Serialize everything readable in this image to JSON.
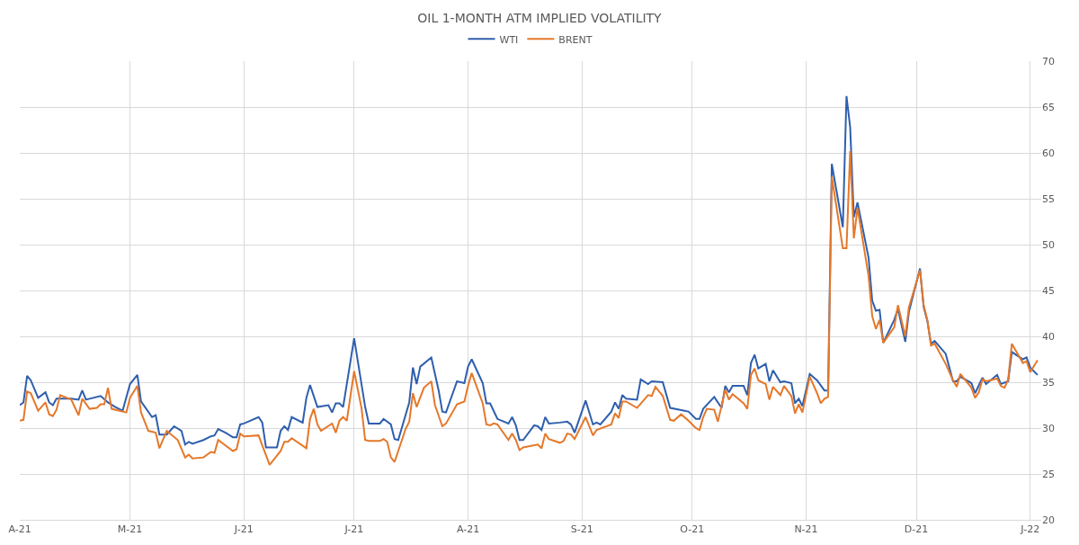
{
  "chart_data": {
    "type": "line",
    "title": "OIL 1-MONTH ATM IMPLIED VOLATILITY",
    "legend": "top",
    "grid": true,
    "line_style": "solid",
    "marker": "none",
    "xlim": [
      "2021-04-01",
      "2022-01-04"
    ],
    "xticks": [
      {
        "value": "2021-04-01",
        "label": "A-21"
      },
      {
        "value": "2021-05-01",
        "label": "M-21"
      },
      {
        "value": "2021-06-01",
        "label": "J-21"
      },
      {
        "value": "2021-07-01",
        "label": "J-21"
      },
      {
        "value": "2021-08-01",
        "label": "A-21"
      },
      {
        "value": "2021-09-01",
        "label": "S-21"
      },
      {
        "value": "2021-10-01",
        "label": "O-21"
      },
      {
        "value": "2021-11-01",
        "label": "N-21"
      },
      {
        "value": "2021-12-01",
        "label": "D-21"
      },
      {
        "value": "2022-01-01",
        "label": "J-22"
      }
    ],
    "ylim": [
      20,
      70
    ],
    "yticks": [
      20,
      25,
      30,
      35,
      40,
      45,
      50,
      55,
      60,
      65,
      70
    ],
    "series": [
      {
        "name": "WTI",
        "color": "#2f5fad",
        "x": [
          "2021-04-01",
          "2021-04-02",
          "2021-04-03",
          "2021-04-04",
          "2021-04-06",
          "2021-04-08",
          "2021-04-09",
          "2021-04-10",
          "2021-04-11",
          "2021-04-15",
          "2021-04-17",
          "2021-04-18",
          "2021-04-19",
          "2021-04-23",
          "2021-04-25",
          "2021-04-27",
          "2021-04-29",
          "2021-05-01",
          "2021-05-03",
          "2021-05-04",
          "2021-05-07",
          "2021-05-08",
          "2021-05-09",
          "2021-05-11",
          "2021-05-13",
          "2021-05-15",
          "2021-05-16",
          "2021-05-17",
          "2021-05-18",
          "2021-05-21",
          "2021-05-23",
          "2021-05-24",
          "2021-05-25",
          "2021-05-27",
          "2021-05-29",
          "2021-05-30",
          "2021-05-31",
          "2021-06-01",
          "2021-06-05",
          "2021-06-06",
          "2021-06-07",
          "2021-06-10",
          "2021-06-11",
          "2021-06-12",
          "2021-06-13",
          "2021-06-14",
          "2021-06-17",
          "2021-06-18",
          "2021-06-19",
          "2021-06-21",
          "2021-06-24",
          "2021-06-25",
          "2021-06-26",
          "2021-06-27",
          "2021-06-28",
          "2021-07-01",
          "2021-07-04",
          "2021-07-05",
          "2021-07-08",
          "2021-07-09",
          "2021-07-11",
          "2021-07-12",
          "2021-07-13",
          "2021-07-16",
          "2021-07-17",
          "2021-07-18",
          "2021-07-19",
          "2021-07-22",
          "2021-07-24",
          "2021-07-25",
          "2021-07-26",
          "2021-07-29",
          "2021-07-31",
          "2021-08-01",
          "2021-08-02",
          "2021-08-05",
          "2021-08-06",
          "2021-08-07",
          "2021-08-09",
          "2021-08-12",
          "2021-08-13",
          "2021-08-14",
          "2021-08-15",
          "2021-08-16",
          "2021-08-19",
          "2021-08-20",
          "2021-08-21",
          "2021-08-22",
          "2021-08-23",
          "2021-08-26",
          "2021-08-28",
          "2021-08-29",
          "2021-08-30",
          "2021-09-02",
          "2021-09-04",
          "2021-09-05",
          "2021-09-06",
          "2021-09-09",
          "2021-09-10",
          "2021-09-11",
          "2021-09-12",
          "2021-09-13",
          "2021-09-16",
          "2021-09-17",
          "2021-09-19",
          "2021-09-20",
          "2021-09-23",
          "2021-09-25",
          "2021-09-30",
          "2021-10-02",
          "2021-10-03",
          "2021-10-04",
          "2021-10-07",
          "2021-10-09",
          "2021-10-10",
          "2021-10-11",
          "2021-10-12",
          "2021-10-15",
          "2021-10-16",
          "2021-10-17",
          "2021-10-18",
          "2021-10-19",
          "2021-10-21",
          "2021-10-22",
          "2021-10-23",
          "2021-10-25",
          "2021-10-26",
          "2021-10-28",
          "2021-10-29",
          "2021-10-30",
          "2021-10-31",
          "2021-11-02",
          "2021-11-04",
          "2021-11-06",
          "2021-11-07",
          "2021-11-08",
          "2021-11-11",
          "2021-11-12",
          "2021-11-13",
          "2021-11-14",
          "2021-11-15",
          "2021-11-18",
          "2021-11-19",
          "2021-11-20",
          "2021-11-21",
          "2021-11-22",
          "2021-11-25",
          "2021-11-26",
          "2021-11-28",
          "2021-11-29",
          "2021-12-02",
          "2021-12-03",
          "2021-12-04",
          "2021-12-05",
          "2021-12-06",
          "2021-12-09",
          "2021-12-11",
          "2021-12-12",
          "2021-12-13",
          "2021-12-16",
          "2021-12-17",
          "2021-12-19",
          "2021-12-20",
          "2021-12-23",
          "2021-12-24",
          "2021-12-26",
          "2021-12-27",
          "2021-12-30",
          "2021-12-31",
          "2022-01-01",
          "2022-01-03"
        ],
        "values": [
          32.5,
          32.8,
          35.7,
          35.2,
          33.3,
          33.9,
          32.8,
          32.5,
          33.2,
          33.2,
          33.1,
          34.1,
          33.1,
          33.5,
          32.8,
          32.3,
          31.9,
          34.8,
          35.8,
          32.9,
          31.2,
          31.4,
          29.3,
          29.3,
          30.2,
          29.7,
          28.2,
          28.5,
          28.3,
          28.7,
          29.1,
          29.2,
          29.9,
          29.5,
          29.0,
          29.0,
          30.4,
          30.5,
          31.2,
          30.6,
          27.9,
          27.9,
          29.7,
          30.2,
          29.8,
          31.2,
          30.6,
          33.3,
          34.7,
          32.3,
          32.5,
          31.7,
          32.7,
          32.7,
          32.3,
          39.8,
          32.3,
          30.5,
          30.5,
          31.0,
          30.4,
          28.8,
          28.7,
          32.8,
          36.6,
          34.8,
          36.7,
          37.7,
          34.1,
          31.8,
          31.7,
          35.1,
          34.9,
          36.7,
          37.5,
          34.9,
          32.7,
          32.7,
          31.0,
          30.5,
          31.2,
          30.3,
          28.7,
          28.7,
          30.3,
          30.2,
          29.8,
          31.2,
          30.5,
          30.6,
          30.7,
          30.4,
          29.5,
          33.0,
          30.4,
          30.6,
          30.4,
          31.8,
          32.8,
          32.1,
          33.6,
          33.2,
          33.1,
          35.3,
          34.8,
          35.1,
          35.0,
          32.2,
          31.8,
          31.0,
          31.0,
          32.1,
          33.4,
          32.2,
          34.6,
          33.9,
          34.6,
          34.6,
          33.6,
          37.1,
          38.0,
          36.5,
          37.0,
          35.1,
          36.3,
          35.0,
          35.1,
          34.9,
          32.7,
          33.2,
          32.4,
          35.9,
          35.2,
          34.1,
          34.1,
          58.8,
          51.9,
          66.2,
          62.8,
          53.0,
          54.6,
          48.6,
          43.9,
          42.8,
          42.9,
          39.3,
          41.8,
          43.0,
          39.4,
          42.7,
          47.4,
          43.2,
          41.7,
          39.2,
          39.5,
          38.1,
          35.1,
          35.1,
          35.6,
          34.9,
          33.8,
          35.5,
          34.8,
          35.8,
          34.8,
          35.1,
          38.3,
          37.5,
          37.7,
          36.6,
          35.8
        ]
      },
      {
        "name": "BRENT",
        "color": "#e5782a",
        "x": [
          "2021-04-01",
          "2021-04-02",
          "2021-04-03",
          "2021-04-04",
          "2021-04-06",
          "2021-04-08",
          "2021-04-09",
          "2021-04-10",
          "2021-04-11",
          "2021-04-12",
          "2021-04-15",
          "2021-04-17",
          "2021-04-18",
          "2021-04-20",
          "2021-04-22",
          "2021-04-23",
          "2021-04-24",
          "2021-04-25",
          "2021-04-26",
          "2021-04-30",
          "2021-05-01",
          "2021-05-03",
          "2021-05-04",
          "2021-05-06",
          "2021-05-08",
          "2021-05-09",
          "2021-05-11",
          "2021-05-14",
          "2021-05-16",
          "2021-05-17",
          "2021-05-18",
          "2021-05-21",
          "2021-05-23",
          "2021-05-24",
          "2021-05-25",
          "2021-05-29",
          "2021-05-30",
          "2021-05-31",
          "2021-06-01",
          "2021-06-05",
          "2021-06-06",
          "2021-06-08",
          "2021-06-11",
          "2021-06-12",
          "2021-06-13",
          "2021-06-14",
          "2021-06-18",
          "2021-06-19",
          "2021-06-20",
          "2021-06-21",
          "2021-06-22",
          "2021-06-25",
          "2021-06-26",
          "2021-06-27",
          "2021-06-28",
          "2021-06-29",
          "2021-07-01",
          "2021-07-03",
          "2021-07-04",
          "2021-07-05",
          "2021-07-08",
          "2021-07-09",
          "2021-07-10",
          "2021-07-11",
          "2021-07-12",
          "2021-07-15",
          "2021-07-16",
          "2021-07-17",
          "2021-07-18",
          "2021-07-20",
          "2021-07-22",
          "2021-07-23",
          "2021-07-25",
          "2021-07-26",
          "2021-07-29",
          "2021-07-31",
          "2021-08-01",
          "2021-08-02",
          "2021-08-05",
          "2021-08-06",
          "2021-08-07",
          "2021-08-08",
          "2021-08-09",
          "2021-08-12",
          "2021-08-13",
          "2021-08-14",
          "2021-08-15",
          "2021-08-16",
          "2021-08-20",
          "2021-08-21",
          "2021-08-22",
          "2021-08-23",
          "2021-08-26",
          "2021-08-27",
          "2021-08-28",
          "2021-08-29",
          "2021-08-30",
          "2021-09-02",
          "2021-09-04",
          "2021-09-05",
          "2021-09-09",
          "2021-09-10",
          "2021-09-11",
          "2021-09-12",
          "2021-09-13",
          "2021-09-16",
          "2021-09-19",
          "2021-09-20",
          "2021-09-21",
          "2021-09-23",
          "2021-09-25",
          "2021-09-26",
          "2021-09-28",
          "2021-09-30",
          "2021-10-02",
          "2021-10-03",
          "2021-10-04",
          "2021-10-05",
          "2021-10-07",
          "2021-10-08",
          "2021-10-10",
          "2021-10-11",
          "2021-10-12",
          "2021-10-15",
          "2021-10-16",
          "2021-10-17",
          "2021-10-18",
          "2021-10-19",
          "2021-10-21",
          "2021-10-22",
          "2021-10-23",
          "2021-10-25",
          "2021-10-26",
          "2021-10-28",
          "2021-10-29",
          "2021-10-30",
          "2021-10-31",
          "2021-11-02",
          "2021-11-04",
          "2021-11-05",
          "2021-11-06",
          "2021-11-07",
          "2021-11-08",
          "2021-11-11",
          "2021-11-12",
          "2021-11-13",
          "2021-11-14",
          "2021-11-15",
          "2021-11-18",
          "2021-11-19",
          "2021-11-20",
          "2021-11-21",
          "2021-11-22",
          "2021-11-25",
          "2021-11-26",
          "2021-11-28",
          "2021-11-29",
          "2021-12-02",
          "2021-12-03",
          "2021-12-04",
          "2021-12-05",
          "2021-12-06",
          "2021-12-09",
          "2021-12-11",
          "2021-12-12",
          "2021-12-13",
          "2021-12-16",
          "2021-12-17",
          "2021-12-18",
          "2021-12-19",
          "2021-12-20",
          "2021-12-23",
          "2021-12-24",
          "2021-12-25",
          "2021-12-26",
          "2021-12-27",
          "2021-12-30",
          "2021-12-31",
          "2022-01-01",
          "2022-01-03"
        ],
        "values": [
          30.8,
          30.9,
          34.0,
          33.8,
          31.9,
          32.8,
          31.5,
          31.3,
          32.0,
          33.6,
          33.1,
          31.4,
          33.2,
          32.1,
          32.2,
          32.6,
          32.6,
          34.4,
          32.1,
          31.7,
          33.3,
          34.6,
          31.7,
          29.7,
          29.5,
          27.8,
          29.7,
          28.7,
          26.8,
          27.1,
          26.7,
          26.8,
          27.4,
          27.3,
          28.7,
          27.5,
          27.7,
          29.4,
          29.1,
          29.2,
          28.1,
          26.0,
          27.5,
          28.5,
          28.5,
          28.9,
          27.8,
          31.0,
          32.1,
          30.4,
          29.7,
          30.5,
          29.5,
          30.8,
          31.2,
          30.8,
          36.2,
          32.2,
          28.7,
          28.6,
          28.6,
          28.8,
          28.5,
          26.8,
          26.3,
          29.9,
          30.7,
          33.8,
          32.3,
          34.4,
          35.1,
          32.5,
          30.2,
          30.5,
          32.6,
          32.9,
          34.6,
          36.0,
          32.7,
          30.4,
          30.3,
          30.5,
          30.4,
          28.7,
          29.4,
          28.7,
          27.6,
          27.9,
          28.2,
          27.8,
          29.4,
          28.8,
          28.4,
          28.6,
          29.4,
          29.3,
          28.8,
          31.2,
          29.2,
          29.8,
          30.4,
          31.6,
          31.1,
          32.9,
          32.9,
          32.2,
          33.6,
          33.5,
          34.5,
          33.5,
          30.9,
          30.8,
          31.5,
          30.8,
          30.0,
          29.8,
          31.2,
          32.1,
          32.0,
          30.7,
          34.2,
          33.1,
          33.7,
          32.7,
          32.1,
          35.8,
          36.5,
          35.2,
          34.8,
          33.1,
          34.5,
          33.6,
          34.6,
          33.5,
          31.6,
          32.6,
          31.7,
          35.6,
          33.8,
          32.7,
          33.2,
          33.4,
          57.4,
          49.6,
          49.6,
          60.2,
          50.7,
          54.0,
          46.6,
          42.2,
          40.8,
          41.8,
          39.3,
          41.0,
          43.4,
          40.0,
          43.2,
          47.2,
          43.4,
          41.8,
          39.0,
          39.2,
          37.0,
          35.2,
          34.5,
          35.9,
          34.4,
          33.3,
          33.9,
          35.3,
          35.1,
          35.4,
          34.6,
          34.4,
          35.3,
          39.2,
          37.1,
          37.3,
          36.1,
          37.4
        ]
      }
    ]
  }
}
